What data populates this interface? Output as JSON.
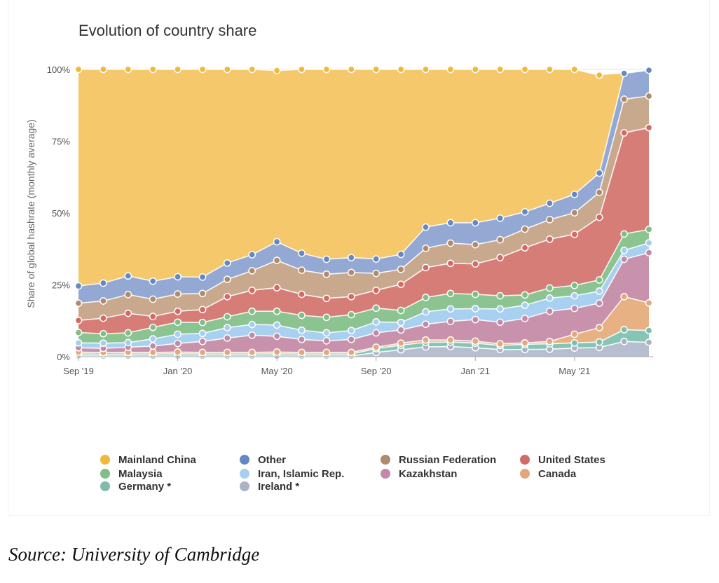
{
  "chart_data": {
    "type": "area",
    "stacked": true,
    "title": "Evolution of country share",
    "subtitle": "",
    "xlabel": "",
    "ylabel": "Share of global hashrate (monthly average)",
    "x": [
      "2019-09",
      "2019-10",
      "2019-11",
      "2019-12",
      "2020-01",
      "2020-02",
      "2020-03",
      "2020-04",
      "2020-05",
      "2020-06",
      "2020-07",
      "2020-08",
      "2020-09",
      "2020-10",
      "2020-11",
      "2020-12",
      "2021-01",
      "2021-02",
      "2021-03",
      "2021-04",
      "2021-05",
      "2021-06",
      "2021-07",
      "2021-08"
    ],
    "x_tick_labels": [
      {
        "x": "2019-09",
        "label": "Sep '19"
      },
      {
        "x": "2020-01",
        "label": "Jan '20"
      },
      {
        "x": "2020-05",
        "label": "May '20"
      },
      {
        "x": "2020-09",
        "label": "Sep '20"
      },
      {
        "x": "2021-01",
        "label": "Jan '21"
      },
      {
        "x": "2021-05",
        "label": "May '21"
      }
    ],
    "y_ticks": [
      {
        "value": 0,
        "label": "0%"
      },
      {
        "value": 25,
        "label": "25%"
      },
      {
        "value": 50,
        "label": "50%"
      },
      {
        "value": 75,
        "label": "75%"
      },
      {
        "value": 100,
        "label": "100%"
      }
    ],
    "ylim": [
      0,
      100
    ],
    "grid": true,
    "legend_position": "bottom",
    "series": [
      {
        "name": "Ireland *",
        "color": "#b6bfcf",
        "values": [
          0.3,
          0.2,
          0.2,
          0.2,
          0.2,
          0.2,
          0.2,
          0.2,
          0.2,
          0.2,
          0.2,
          0.2,
          1.5,
          2.4,
          3.4,
          3.5,
          3.1,
          2.5,
          2.5,
          2.6,
          3.0,
          3.2,
          5.3,
          5.0
        ]
      },
      {
        "name": "Germany *",
        "color": "#86c5b5",
        "values": [
          0.7,
          0.6,
          0.7,
          0.7,
          0.8,
          0.7,
          0.7,
          0.7,
          0.8,
          0.7,
          0.7,
          0.7,
          1.3,
          1.6,
          1.6,
          1.6,
          1.6,
          1.4,
          1.8,
          1.9,
          1.8,
          1.9,
          4.1,
          4.1
        ]
      },
      {
        "name": "Canada",
        "color": "#e8b184",
        "values": [
          0.6,
          0.6,
          0.6,
          0.6,
          0.6,
          0.6,
          0.6,
          0.6,
          0.6,
          0.6,
          0.6,
          0.6,
          0.5,
          0.7,
          0.8,
          0.7,
          0.7,
          0.6,
          0.5,
          0.8,
          3.0,
          5.0,
          11.5,
          9.6
        ]
      },
      {
        "name": "Kazakhstan",
        "color": "#c892ad",
        "values": [
          1.5,
          1.5,
          1.8,
          2.2,
          3.0,
          3.8,
          5.0,
          6.0,
          5.5,
          4.5,
          4.0,
          4.5,
          5.0,
          4.6,
          5.5,
          6.5,
          7.5,
          7.5,
          8.5,
          10.5,
          9.0,
          8.5,
          13.0,
          17.5
        ]
      },
      {
        "name": "Iran, Islamic Rep.",
        "color": "#a8d0f0",
        "values": [
          1.7,
          1.8,
          1.6,
          2.5,
          3.2,
          2.8,
          3.6,
          3.7,
          3.9,
          3.2,
          2.8,
          3.1,
          3.8,
          2.6,
          4.3,
          4.3,
          3.8,
          4.6,
          4.6,
          4.6,
          4.4,
          4.2,
          3.1,
          3.4
        ]
      },
      {
        "name": "Malaysia",
        "color": "#8cc491",
        "values": [
          3.6,
          3.3,
          3.4,
          4.0,
          4.2,
          3.8,
          3.8,
          4.6,
          4.8,
          5.2,
          5.4,
          5.5,
          4.8,
          4.2,
          5.0,
          5.4,
          5.0,
          4.6,
          3.6,
          3.5,
          3.6,
          3.9,
          5.7,
          4.7
        ]
      },
      {
        "name": "United States",
        "color": "#d77d78",
        "values": [
          4.2,
          5.4,
          6.8,
          3.8,
          3.8,
          4.5,
          7.0,
          7.3,
          8.2,
          7.3,
          6.6,
          6.3,
          6.2,
          9.1,
          10.4,
          10.5,
          10.6,
          13.3,
          16.4,
          17.0,
          17.8,
          21.8,
          35.2,
          35.4
        ]
      },
      {
        "name": "Russian Federation",
        "color": "#c9a98e",
        "values": [
          6.0,
          6.0,
          6.5,
          6.0,
          6.0,
          5.6,
          6.0,
          6.8,
          9.5,
          8.4,
          8.4,
          8.4,
          5.9,
          5.2,
          6.7,
          7.0,
          6.7,
          6.2,
          6.5,
          6.8,
          7.5,
          8.7,
          11.7,
          11.0
        ]
      },
      {
        "name": "Other",
        "color": "#93a9d4",
        "values": [
          6.0,
          6.2,
          6.5,
          6.3,
          6.0,
          5.7,
          5.7,
          5.6,
          6.5,
          5.9,
          5.2,
          5.2,
          5.0,
          5.2,
          7.4,
          7.1,
          7.6,
          7.5,
          6.0,
          5.7,
          6.4,
          6.7,
          9.0,
          9.0
        ]
      },
      {
        "name": "Mainland China",
        "color": "#f6c86c",
        "values": [
          75.4,
          74.4,
          71.9,
          73.7,
          72.2,
          72.3,
          67.4,
          64.5,
          59.6,
          64.0,
          66.1,
          65.5,
          66.0,
          64.4,
          54.9,
          53.4,
          53.4,
          51.8,
          49.6,
          46.6,
          43.5,
          34.1,
          0,
          0
        ]
      }
    ],
    "legend": [
      {
        "name": "Mainland China",
        "color": "#f0b93a"
      },
      {
        "name": "Other",
        "color": "#6588c3"
      },
      {
        "name": "Russian Federation",
        "color": "#b08a6d"
      },
      {
        "name": "United States",
        "color": "#d46a66"
      },
      {
        "name": "Malaysia",
        "color": "#80bd87"
      },
      {
        "name": "Iran, Islamic Rep.",
        "color": "#a8cdee"
      },
      {
        "name": "Kazakhstan",
        "color": "#c08aa8"
      },
      {
        "name": "Canada",
        "color": "#e3a77a"
      },
      {
        "name": "Germany *",
        "color": "#7ebdae"
      },
      {
        "name": "Ireland *",
        "color": "#aab3c4"
      }
    ]
  },
  "source": "Source: University of Cambridge"
}
